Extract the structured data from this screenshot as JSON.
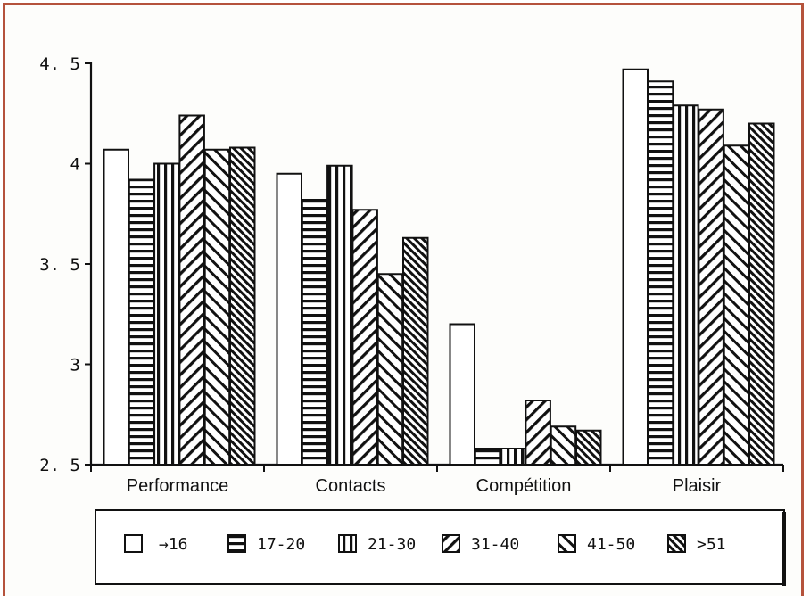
{
  "chart_data": {
    "type": "bar",
    "categories": [
      "Performance",
      "Contacts",
      "Compétition",
      "Plaisir"
    ],
    "series": [
      {
        "name": "→16",
        "values": [
          4.07,
          3.95,
          3.2,
          4.47
        ],
        "pattern": "empty"
      },
      {
        "name": "17-20",
        "values": [
          3.92,
          3.82,
          2.58,
          4.41
        ],
        "pattern": "horizontal"
      },
      {
        "name": "21-30",
        "values": [
          4.0,
          3.99,
          2.58,
          4.29
        ],
        "pattern": "vertical"
      },
      {
        "name": "31-40",
        "values": [
          4.24,
          3.77,
          2.82,
          4.27
        ],
        "pattern": "diag-down"
      },
      {
        "name": "41-50",
        "values": [
          4.07,
          3.45,
          2.69,
          4.09
        ],
        "pattern": "diag-up"
      },
      {
        "name": ">51",
        "values": [
          4.08,
          3.63,
          2.67,
          4.2
        ],
        "pattern": "diag-up-dense"
      }
    ],
    "ylim": [
      2.5,
      4.5
    ],
    "yticks": [
      2.5,
      3,
      3.5,
      4,
      4.5
    ],
    "ytick_labels": [
      "2. 5",
      "3",
      "3. 5",
      "4",
      "4. 5"
    ],
    "xlabel": "",
    "ylabel": "",
    "legend_position": "bottom",
    "grid": false,
    "colors": {
      "ink": "#111111",
      "frame": "#b5533c",
      "background": "#fdfdfb"
    }
  }
}
